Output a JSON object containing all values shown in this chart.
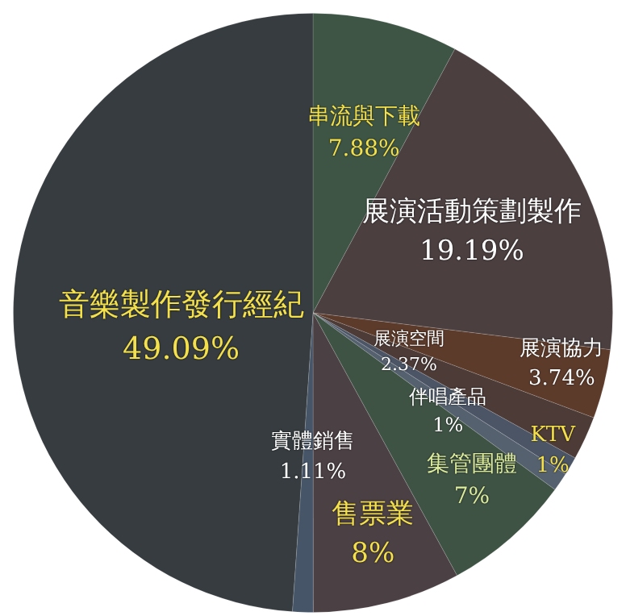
{
  "chart_data": {
    "type": "pie",
    "categories": [
      "串流與下載",
      "展演活動策劃製作",
      "展演協力",
      "展演空間",
      "伴唱產品",
      "KTV",
      "集管團體",
      "售票業",
      "實體銷售",
      "音樂製作發行經紀"
    ],
    "values": [
      7.88,
      19.19,
      3.74,
      2.37,
      1,
      1,
      7,
      8,
      1.11,
      49.09
    ],
    "colors": [
      "#3e5546",
      "#4b3f40",
      "#5c3b2b",
      "#4d3b37",
      "#4b5565",
      "#56616f",
      "#3f5345",
      "#4b4044",
      "#465568",
      "#363c3f"
    ],
    "value_labels": [
      "7.88%",
      "19.19%",
      "3.74%",
      "2.37%",
      "1%",
      "1%",
      "7%",
      "8%",
      "1.11%",
      "49.09%"
    ],
    "legend": false
  }
}
